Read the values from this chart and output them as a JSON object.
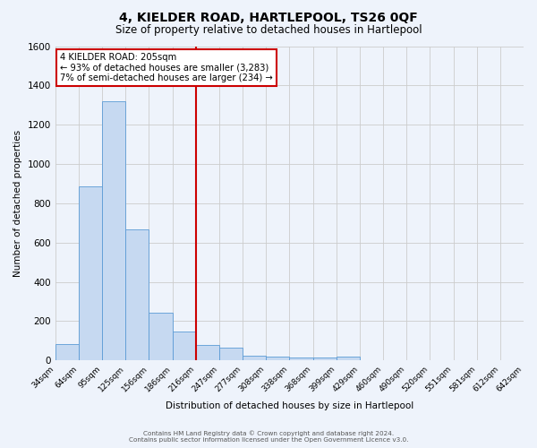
{
  "title": "4, KIELDER ROAD, HARTLEPOOL, TS26 0QF",
  "subtitle": "Size of property relative to detached houses in Hartlepool",
  "xlabel": "Distribution of detached houses by size in Hartlepool",
  "ylabel": "Number of detached properties",
  "categories": [
    "34sqm",
    "64sqm",
    "95sqm",
    "125sqm",
    "156sqm",
    "186sqm",
    "216sqm",
    "247sqm",
    "277sqm",
    "308sqm",
    "338sqm",
    "368sqm",
    "399sqm",
    "429sqm",
    "460sqm",
    "490sqm",
    "520sqm",
    "551sqm",
    "581sqm",
    "612sqm",
    "642sqm"
  ],
  "values": [
    85,
    885,
    1320,
    665,
    245,
    145,
    80,
    65,
    25,
    20,
    15,
    15,
    20,
    0,
    0,
    0,
    0,
    0,
    0,
    0
  ],
  "bar_color": "#c6d9f1",
  "bar_edgecolor": "#5b9bd5",
  "vline_position": 6,
  "vline_color": "#cc0000",
  "ylim": [
    0,
    1600
  ],
  "yticks": [
    0,
    200,
    400,
    600,
    800,
    1000,
    1200,
    1400,
    1600
  ],
  "annotation_lines": [
    "4 KIELDER ROAD: 205sqm",
    "← 93% of detached houses are smaller (3,283)",
    "7% of semi-detached houses are larger (234) →"
  ],
  "annotation_box_color": "#ffffff",
  "annotation_box_edgecolor": "#cc0000",
  "footer_line1": "Contains HM Land Registry data © Crown copyright and database right 2024.",
  "footer_line2": "Contains public sector information licensed under the Open Government Licence v3.0.",
  "background_color": "#eef3fb",
  "grid_color": "#cccccc"
}
